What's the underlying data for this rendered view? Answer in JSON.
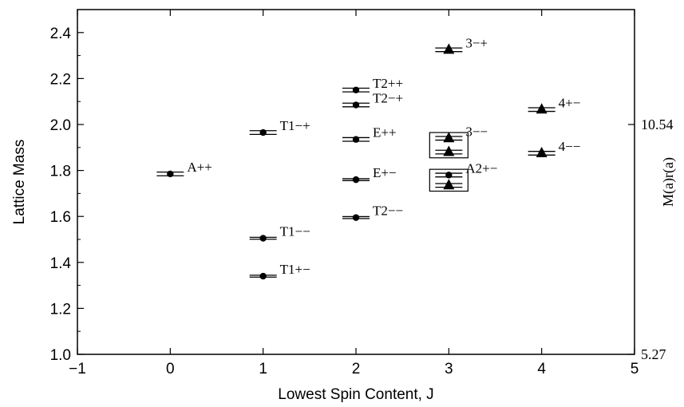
{
  "chart_data": {
    "type": "scatter",
    "xlabel": "Lowest Spin Content, J",
    "ylabel": "Lattice Mass",
    "right_ylabel": "M(a)r(a)",
    "xlim": [
      -1,
      5
    ],
    "ylim": [
      1.0,
      2.5
    ],
    "x_ticks": [
      "−1",
      "0",
      "1",
      "2",
      "3",
      "4",
      "5"
    ],
    "y_ticks": [
      "1.0",
      "1.2",
      "1.4",
      "1.6",
      "1.8",
      "2.0",
      "2.2",
      "2.4"
    ],
    "right_ticks": [
      {
        "y": 2.0,
        "label": "10.54"
      },
      {
        "y": 1.0,
        "label": "5.27"
      }
    ],
    "grid": false,
    "states": [
      {
        "x": 0,
        "y": 1.785,
        "err": 0.008,
        "marker": "circle",
        "label": "A++"
      },
      {
        "x": 1,
        "y": 1.965,
        "err": 0.008,
        "marker": "circle",
        "label": "T1−+"
      },
      {
        "x": 1,
        "y": 1.505,
        "err": 0.004,
        "marker": "circle",
        "label": "T1−−"
      },
      {
        "x": 1,
        "y": 1.34,
        "err": 0.004,
        "marker": "circle",
        "label": "T1+−"
      },
      {
        "x": 2,
        "y": 2.15,
        "err": 0.008,
        "marker": "circle",
        "label": "T2++"
      },
      {
        "x": 2,
        "y": 2.085,
        "err": 0.008,
        "marker": "circle",
        "label": "T2−+"
      },
      {
        "x": 2,
        "y": 1.935,
        "err": 0.008,
        "marker": "circle",
        "label": "E++"
      },
      {
        "x": 2,
        "y": 1.76,
        "err": 0.004,
        "marker": "circle",
        "label": "E+−"
      },
      {
        "x": 2,
        "y": 1.595,
        "err": 0.004,
        "marker": "circle",
        "label": "T2−−"
      },
      {
        "x": 3,
        "y": 2.325,
        "err": 0.008,
        "marker": "triangle",
        "label": "3−+"
      },
      {
        "x": 3,
        "y": 1.94,
        "err": 0.008,
        "marker": "triangle",
        "label": "3−−"
      },
      {
        "x": 3,
        "y": 1.88,
        "err": 0.008,
        "marker": "triangle",
        "label": ""
      },
      {
        "x": 3,
        "y": 1.78,
        "err": 0.008,
        "marker": "circle",
        "label": "A2+−"
      },
      {
        "x": 3,
        "y": 1.735,
        "err": 0.008,
        "marker": "triangle",
        "label": ""
      },
      {
        "x": 4,
        "y": 2.065,
        "err": 0.008,
        "marker": "triangle",
        "label": "4+−"
      },
      {
        "x": 4,
        "y": 1.875,
        "err": 0.008,
        "marker": "triangle",
        "label": "4−−"
      }
    ],
    "boxes": [
      {
        "x": 3,
        "y_min": 1.855,
        "y_max": 1.965
      },
      {
        "x": 3,
        "y_min": 1.71,
        "y_max": 1.805
      }
    ]
  }
}
